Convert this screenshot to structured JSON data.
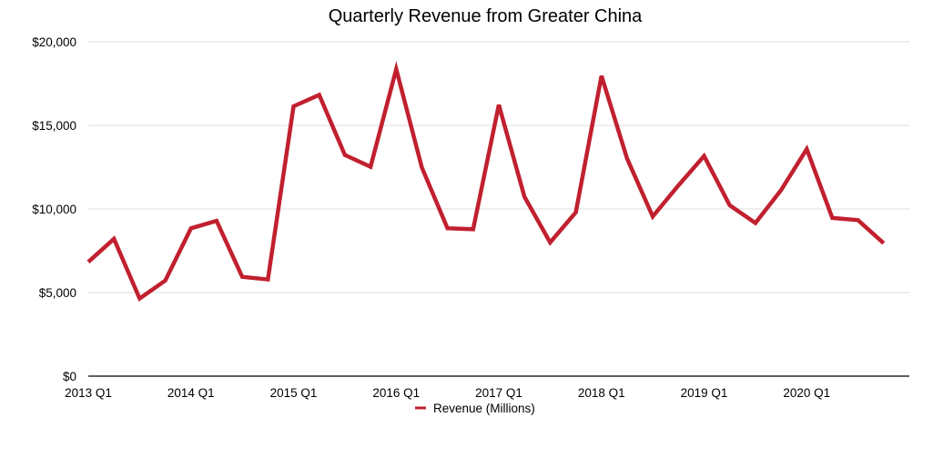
{
  "chart_data": {
    "type": "line",
    "title": "Quarterly Revenue from Greater China",
    "xlabel": "",
    "ylabel": "",
    "ylim": [
      0,
      20000
    ],
    "yticks": [
      0,
      5000,
      10000,
      15000,
      20000
    ],
    "ytick_labels": [
      "$0",
      "$5,000",
      "$10,000",
      "$15,000",
      "$20,000"
    ],
    "categories": [
      "2013 Q1",
      "2013 Q2",
      "2013 Q3",
      "2013 Q4",
      "2014 Q1",
      "2014 Q2",
      "2014 Q3",
      "2014 Q4",
      "2015 Q1",
      "2015 Q2",
      "2015 Q3",
      "2015 Q4",
      "2016 Q1",
      "2016 Q2",
      "2016 Q3",
      "2016 Q4",
      "2017 Q1",
      "2017 Q2",
      "2017 Q3",
      "2017 Q4",
      "2018 Q1",
      "2018 Q2",
      "2018 Q3",
      "2018 Q4",
      "2019 Q1",
      "2019 Q2",
      "2019 Q3",
      "2019 Q4",
      "2020 Q1",
      "2020 Q2",
      "2020 Q3",
      "2020 Q4"
    ],
    "xtick_labels": [
      "2013 Q1",
      "2014 Q1",
      "2015 Q1",
      "2016 Q1",
      "2017 Q1",
      "2018 Q1",
      "2019 Q1",
      "2020 Q1"
    ],
    "series": [
      {
        "name": "Revenue (Millions)",
        "color": "#c1202f",
        "values": [
          6830,
          8210,
          4640,
          5720,
          8840,
          9290,
          5940,
          5780,
          16140,
          16820,
          13230,
          12520,
          18370,
          12490,
          8850,
          8790,
          16230,
          10730,
          8000,
          9800,
          17960,
          13020,
          9550,
          11410,
          13170,
          10220,
          9160,
          11130,
          13580,
          9460,
          9330,
          7950
        ]
      }
    ],
    "grid": true,
    "legend_position": "bottom-center"
  }
}
